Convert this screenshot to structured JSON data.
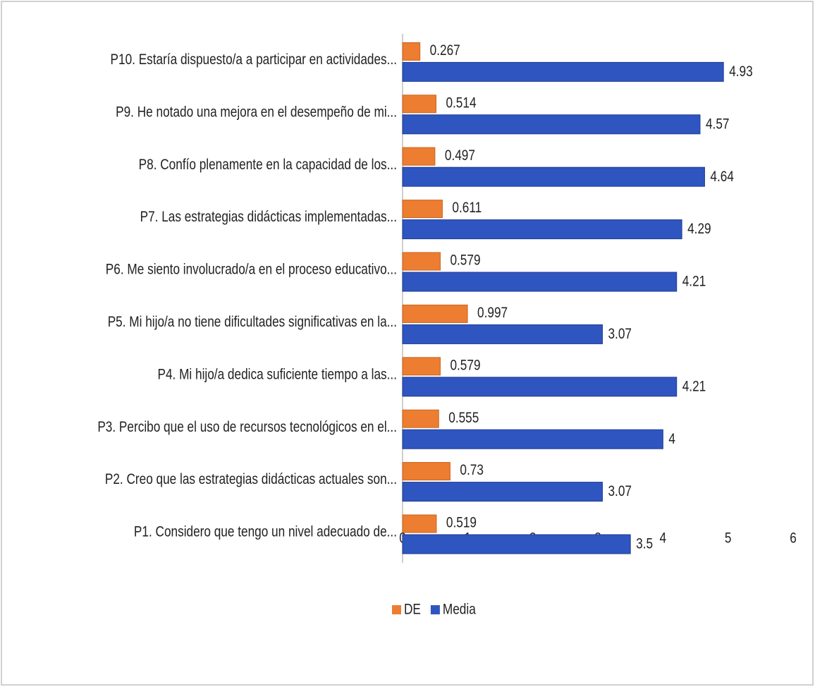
{
  "chart_data": {
    "type": "bar",
    "orientation": "horizontal",
    "categories": [
      "P1. Considero que tengo un nivel adecuado de...",
      "P2. Creo que las estrategias didácticas actuales son...",
      "P3. Percibo que el uso de recursos tecnológicos en el...",
      "P4. Mi hijo/a dedica suficiente tiempo a las...",
      "P5. Mi hijo/a no tiene dificultades significativas en la...",
      "P6. Me siento involucrado/a en el proceso educativo...",
      "P7. Las estrategias didácticas implementadas...",
      "P8. Confío plenamente en la capacidad de los...",
      "P9. He notado una mejora en el desempeño de mi...",
      "P10. Estaría dispuesto/a a participar en actividades..."
    ],
    "series": [
      {
        "name": "DE",
        "color": "#ed7d31",
        "values": [
          0.519,
          0.73,
          0.555,
          0.579,
          0.997,
          0.579,
          0.611,
          0.497,
          0.514,
          0.267
        ]
      },
      {
        "name": "Media",
        "color": "#2f55c1",
        "values": [
          3.5,
          3.07,
          4,
          4.21,
          3.07,
          4.21,
          4.29,
          4.64,
          4.57,
          4.93
        ]
      }
    ],
    "xlim": [
      0,
      6
    ],
    "xticks": [
      0,
      1,
      2,
      3,
      4,
      5,
      6
    ],
    "legend": "bottom"
  }
}
